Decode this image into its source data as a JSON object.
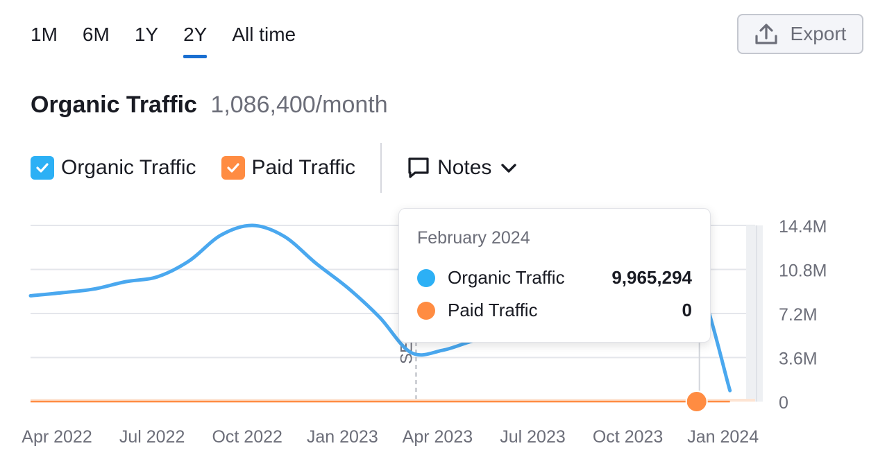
{
  "ranges": [
    "1M",
    "6M",
    "1Y",
    "2Y",
    "All time"
  ],
  "active_range": "2Y",
  "export_label": "Export",
  "title": {
    "main": "Organic Traffic",
    "value": "1,086,400/month"
  },
  "legend": {
    "organic": {
      "label": "Organic Traffic",
      "color": "#2cb0f5"
    },
    "paid": {
      "label": "Paid Traffic",
      "color": "#ff8c42"
    },
    "notes_label": "Notes"
  },
  "tooltip": {
    "date": "February 2024",
    "rows": [
      {
        "label": "Organic Traffic",
        "value": "9,965,294",
        "color": "#2cb0f5"
      },
      {
        "label": "Paid Traffic",
        "value": "0",
        "color": "#ff8c42"
      }
    ]
  },
  "colors": {
    "organic_line": "#4aa8ef",
    "paid_line": "#ff8c42",
    "paid_fill": "#fde4d3",
    "grid": "#e4e6eb",
    "text_muted": "#6c6e79"
  },
  "chart_data": {
    "type": "line",
    "title": "Organic Traffic",
    "xlabel": "",
    "ylabel": "",
    "ylim": [
      0,
      14400000
    ],
    "y_ticks": [
      0,
      3600000,
      7200000,
      10800000,
      14400000
    ],
    "y_tick_labels": [
      "0",
      "3.6M",
      "7.2M",
      "10.8M",
      "14.4M"
    ],
    "x_tick_labels": [
      "Apr 2022",
      "Jul 2022",
      "Oct 2022",
      "Jan 2023",
      "Apr 2023",
      "Jul 2023",
      "Oct 2023",
      "Jan 2024"
    ],
    "x_tick_index": [
      0,
      3,
      6,
      9,
      12,
      15,
      18,
      21
    ],
    "annotation": {
      "label": "SERP features",
      "index": 12
    },
    "series": [
      {
        "name": "Organic Traffic",
        "values": [
          8650000,
          8900000,
          9200000,
          9800000,
          10200000,
          11500000,
          13600000,
          14400000,
          13500000,
          11300000,
          9300000,
          6900000,
          4000000,
          4200000,
          5000000,
          5500000,
          6500000,
          7300000,
          8200000,
          9000000,
          9600000,
          9965294,
          900000
        ],
        "x_index": [
          0,
          1,
          2,
          3,
          4,
          5,
          6,
          7,
          8,
          9,
          10,
          11,
          12,
          13,
          14,
          15,
          16,
          17,
          18,
          19,
          20,
          21,
          22.05
        ]
      },
      {
        "name": "Paid Traffic",
        "values": [
          0,
          0,
          0,
          0,
          0,
          0,
          0,
          0,
          0,
          0,
          0,
          0,
          0,
          0,
          0,
          0,
          0,
          0,
          0,
          0,
          0,
          0,
          0
        ],
        "x_index": [
          0,
          1,
          2,
          3,
          4,
          5,
          6,
          7,
          8,
          9,
          10,
          11,
          12,
          13,
          14,
          15,
          16,
          17,
          18,
          19,
          20,
          21,
          22.05
        ]
      }
    ],
    "highlight_index": 21
  }
}
